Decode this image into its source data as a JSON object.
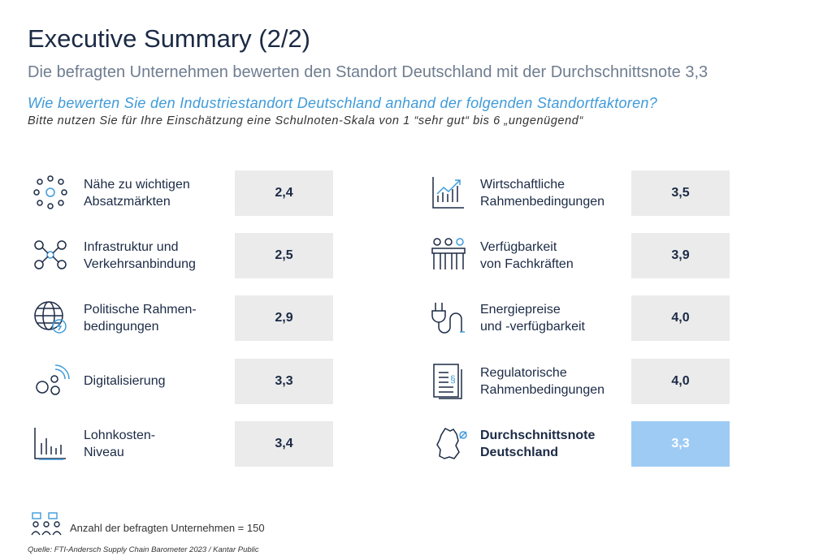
{
  "header": {
    "title": "Executive Summary (2/2)",
    "subtitle": "Die befragten Unternehmen bewerten den Standort Deutschland mit der Durchschnittsnote 3,3",
    "question": "Wie bewerten Sie den Industriestandort Deutschland anhand der folgenden Standortfaktoren?",
    "instruction": "Bitte nutzen Sie für Ihre Einschätzung eine Schulnoten-Skala von 1 “sehr gut“ bis 6 „ungenügend“"
  },
  "left": [
    {
      "label": [
        "Nähe zu wichtigen",
        "Absatzmärkten"
      ],
      "score": "2,4"
    },
    {
      "label": [
        "Infrastruktur und",
        "Verkehrsanbindung"
      ],
      "score": "2,5"
    },
    {
      "label": [
        "Politische Rahmen-",
        "bedingungen"
      ],
      "score": "2,9"
    },
    {
      "label": [
        "Digitalisierung"
      ],
      "score": "3,3"
    },
    {
      "label": [
        "Lohnkosten-",
        "Niveau"
      ],
      "score": "3,4"
    }
  ],
  "right": [
    {
      "label": [
        "Wirtschaftliche",
        "Rahmenbedingungen"
      ],
      "score": "3,5"
    },
    {
      "label": [
        "Verfügbarkeit",
        "von Fachkräften"
      ],
      "score": "3,9"
    },
    {
      "label": [
        "Energiepreise",
        "und -verfügbarkeit"
      ],
      "score": "4,0"
    },
    {
      "label": [
        "Regulatorische",
        "Rahmenbedingungen"
      ],
      "score": "4,0"
    },
    {
      "label": [
        "Durchschnittsnote",
        "Deutschland"
      ],
      "score": "3,3",
      "highlight": true
    }
  ],
  "note": "Anzahl der befragten Unternehmen = 150",
  "source": "Quelle: FTI-Andersch Supply Chain Barometer 2023 / Kantar Public"
}
